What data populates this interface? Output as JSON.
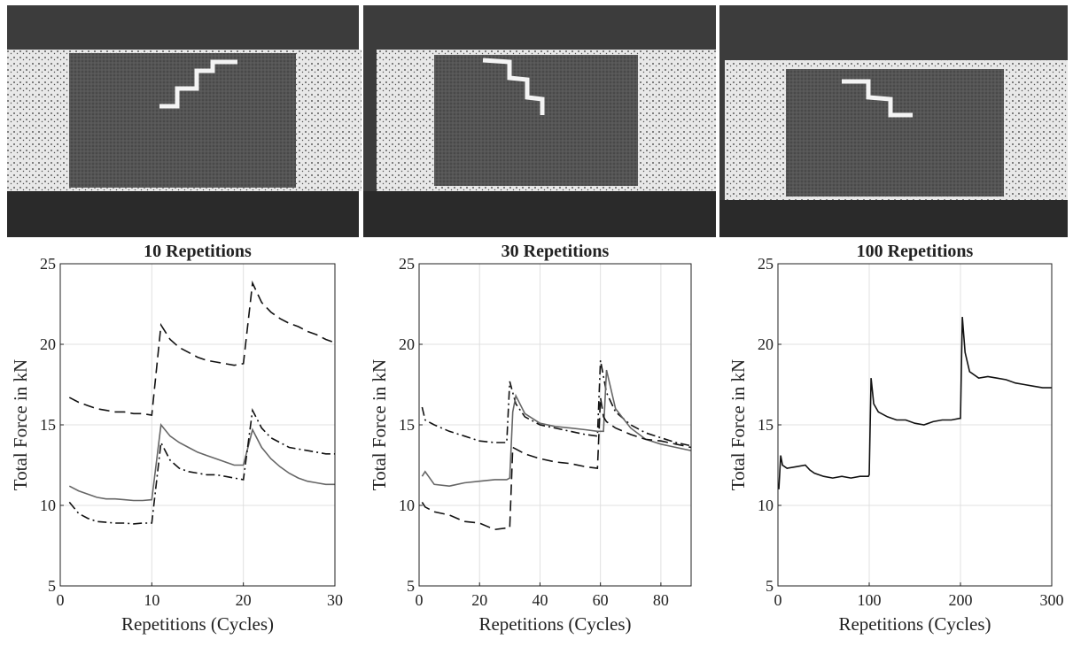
{
  "chart_data": [
    {
      "type": "line",
      "title": "10 Repetitions",
      "xlabel": "Repetitions (Cycles)",
      "ylabel": "Total Force in kN",
      "xlim": [
        0,
        30
      ],
      "xticks": [
        0,
        10,
        20,
        30
      ],
      "ylim": [
        5,
        25
      ],
      "yticks": [
        5,
        10,
        15,
        20,
        25
      ],
      "grid": true,
      "x": [
        1,
        2,
        3,
        4,
        5,
        6,
        7,
        8,
        9,
        10,
        11,
        12,
        13,
        14,
        15,
        16,
        17,
        18,
        19,
        20,
        21,
        22,
        23,
        24,
        25,
        26,
        27,
        28,
        29,
        30
      ],
      "series": [
        {
          "color": "#111111",
          "style": "dashed",
          "values": [
            16.7,
            16.4,
            16.2,
            16.0,
            15.9,
            15.8,
            15.8,
            15.7,
            15.7,
            15.6,
            21.2,
            20.3,
            19.8,
            19.5,
            19.2,
            19.0,
            18.9,
            18.8,
            18.7,
            18.8,
            23.8,
            22.6,
            22.0,
            21.6,
            21.3,
            21.1,
            20.8,
            20.6,
            20.3,
            20.1
          ]
        },
        {
          "color": "#666666",
          "style": "solid",
          "values": [
            11.2,
            10.9,
            10.7,
            10.5,
            10.4,
            10.4,
            10.35,
            10.3,
            10.3,
            10.35,
            15.0,
            14.3,
            13.9,
            13.6,
            13.3,
            13.1,
            12.9,
            12.7,
            12.5,
            12.5,
            14.7,
            13.6,
            12.9,
            12.4,
            12.0,
            11.7,
            11.5,
            11.4,
            11.3,
            11.3
          ]
        },
        {
          "color": "#111111",
          "style": "dashdot",
          "values": [
            10.2,
            9.5,
            9.2,
            9.0,
            8.95,
            8.9,
            8.9,
            8.85,
            8.9,
            8.9,
            13.9,
            12.8,
            12.3,
            12.1,
            12.0,
            11.9,
            11.9,
            11.8,
            11.7,
            11.6,
            15.9,
            14.8,
            14.2,
            13.9,
            13.6,
            13.5,
            13.4,
            13.3,
            13.2,
            13.2
          ]
        }
      ]
    },
    {
      "type": "line",
      "title": "30 Repetitions",
      "xlabel": "Repetitions (Cycles)",
      "ylabel": "Total Force in kN",
      "xlim": [
        0,
        90
      ],
      "xticks": [
        0,
        20,
        40,
        60,
        80
      ],
      "ylim": [
        5,
        25
      ],
      "yticks": [
        5,
        10,
        15,
        20,
        25
      ],
      "grid": true,
      "x": [
        1,
        2,
        5,
        10,
        15,
        20,
        25,
        29,
        30,
        31,
        32,
        35,
        40,
        45,
        50,
        55,
        59,
        60,
        61,
        62,
        65,
        70,
        75,
        80,
        85,
        90
      ],
      "series": [
        {
          "color": "#111111",
          "style": "dashdot",
          "values": [
            16.1,
            15.3,
            15.0,
            14.6,
            14.3,
            14.0,
            13.9,
            13.9,
            17.7,
            17.0,
            16.3,
            15.5,
            15.0,
            14.8,
            14.6,
            14.4,
            14.3,
            19.0,
            18.0,
            17.0,
            15.8,
            15.0,
            14.5,
            14.2,
            13.9,
            13.7
          ]
        },
        {
          "color": "#666666",
          "style": "solid",
          "values": [
            11.8,
            12.1,
            11.3,
            11.2,
            11.4,
            11.5,
            11.6,
            11.6,
            11.7,
            15.8,
            16.8,
            15.7,
            15.1,
            14.9,
            14.8,
            14.7,
            14.6,
            14.6,
            14.6,
            18.4,
            16.0,
            14.8,
            14.1,
            13.8,
            13.6,
            13.4
          ]
        },
        {
          "color": "#111111",
          "style": "dashed",
          "values": [
            10.2,
            9.9,
            9.6,
            9.4,
            9.0,
            8.9,
            8.5,
            8.6,
            8.6,
            13.6,
            13.5,
            13.2,
            12.9,
            12.7,
            12.6,
            12.4,
            12.3,
            16.7,
            15.5,
            15.2,
            14.8,
            14.4,
            14.1,
            14.0,
            13.8,
            13.6
          ]
        }
      ]
    },
    {
      "type": "line",
      "title": "100 Repetitions",
      "xlabel": "Repetitions (Cycles)",
      "ylabel": "Total Force in kN",
      "xlim": [
        0,
        300
      ],
      "xticks": [
        0,
        100,
        200,
        300
      ],
      "ylim": [
        5,
        25
      ],
      "yticks": [
        5,
        10,
        15,
        20,
        25
      ],
      "grid": true,
      "x": [
        1,
        3,
        5,
        10,
        20,
        30,
        35,
        40,
        50,
        60,
        70,
        80,
        90,
        99,
        100,
        102,
        105,
        110,
        120,
        130,
        140,
        150,
        160,
        170,
        180,
        190,
        199,
        200,
        202,
        205,
        210,
        220,
        230,
        240,
        250,
        260,
        270,
        280,
        290,
        300
      ],
      "series": [
        {
          "color": "#111111",
          "style": "solid",
          "values": [
            11.0,
            13.1,
            12.5,
            12.3,
            12.4,
            12.5,
            12.2,
            12.0,
            11.8,
            11.7,
            11.8,
            11.7,
            11.8,
            11.8,
            11.9,
            17.9,
            16.3,
            15.8,
            15.5,
            15.3,
            15.3,
            15.1,
            15.0,
            15.2,
            15.3,
            15.3,
            15.4,
            15.4,
            21.7,
            19.5,
            18.3,
            17.9,
            18.0,
            17.9,
            17.8,
            17.6,
            17.5,
            17.4,
            17.3,
            17.3
          ]
        }
      ]
    }
  ]
}
